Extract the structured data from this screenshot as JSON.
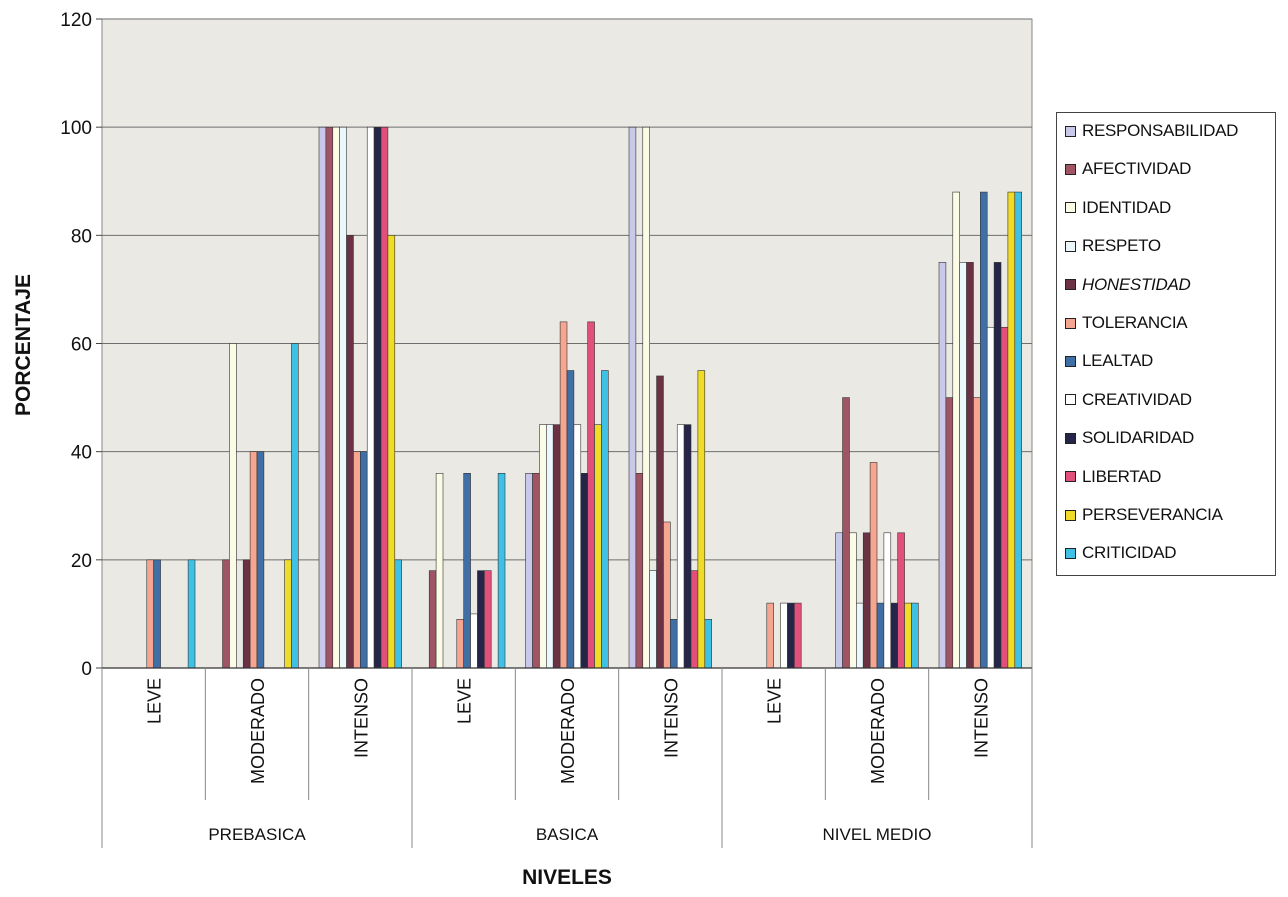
{
  "chart_data": {
    "type": "bar",
    "ylabel": "PORCENTAJE",
    "xlabel": "NIVELES",
    "ylim": [
      0,
      120
    ],
    "yticks": [
      "0",
      "20",
      "40",
      "60",
      "80",
      "100",
      "120"
    ],
    "groups": [
      {
        "label": "PREBASICA",
        "categories": [
          "LEVE",
          "MODERADO",
          "INTENSO"
        ]
      },
      {
        "label": "BASICA",
        "categories": [
          "LEVE",
          "MODERADO",
          "INTENSO"
        ]
      },
      {
        "label": "NIVEL MEDIO",
        "categories": [
          "LEVE",
          "MODERADO",
          "INTENSO"
        ]
      }
    ],
    "series": [
      {
        "name": "RESPONSABILIDAD",
        "color": "#c8c8ea",
        "values": [
          0,
          0,
          100,
          0,
          36,
          100,
          0,
          25,
          75
        ]
      },
      {
        "name": "AFECTIVIDAD",
        "color": "#a05565",
        "values": [
          0,
          20,
          100,
          18,
          36,
          36,
          0,
          50,
          50
        ]
      },
      {
        "name": "IDENTIDAD",
        "color": "#fbfbe6",
        "values": [
          0,
          60,
          100,
          36,
          45,
          100,
          0,
          25,
          88
        ]
      },
      {
        "name": "RESPETO",
        "color": "#ecf7fb",
        "values": [
          0,
          0,
          100,
          0,
          45,
          18,
          0,
          12,
          75
        ]
      },
      {
        "name": "HONESTIDAD",
        "color": "#6b3246",
        "values": [
          0,
          20,
          80,
          0,
          45,
          54,
          0,
          25,
          75
        ]
      },
      {
        "name": "TOLERANCIA",
        "color": "#f5a590",
        "values": [
          20,
          40,
          40,
          9,
          64,
          27,
          12,
          38,
          50
        ]
      },
      {
        "name": "LEALTAD",
        "color": "#3f6fa5",
        "values": [
          20,
          40,
          40,
          36,
          55,
          9,
          0,
          12,
          88
        ]
      },
      {
        "name": "CREATIVIDAD",
        "color": "#ffffff",
        "values": [
          0,
          0,
          100,
          10,
          45,
          45,
          12,
          25,
          63
        ]
      },
      {
        "name": "SOLIDARIDAD",
        "color": "#25254a",
        "values": [
          0,
          0,
          100,
          18,
          36,
          45,
          12,
          12,
          75
        ]
      },
      {
        "name": "LIBERTAD",
        "color": "#e0507a",
        "values": [
          0,
          0,
          100,
          18,
          64,
          18,
          12,
          25,
          63
        ]
      },
      {
        "name": "PERSEVERANCIA",
        "color": "#f0dc28",
        "values": [
          0,
          20,
          80,
          0,
          45,
          55,
          0,
          12,
          88
        ]
      },
      {
        "name": "CRITICIDAD",
        "color": "#3fc0e5",
        "values": [
          20,
          60,
          20,
          36,
          55,
          9,
          0,
          12,
          88
        ]
      }
    ]
  }
}
